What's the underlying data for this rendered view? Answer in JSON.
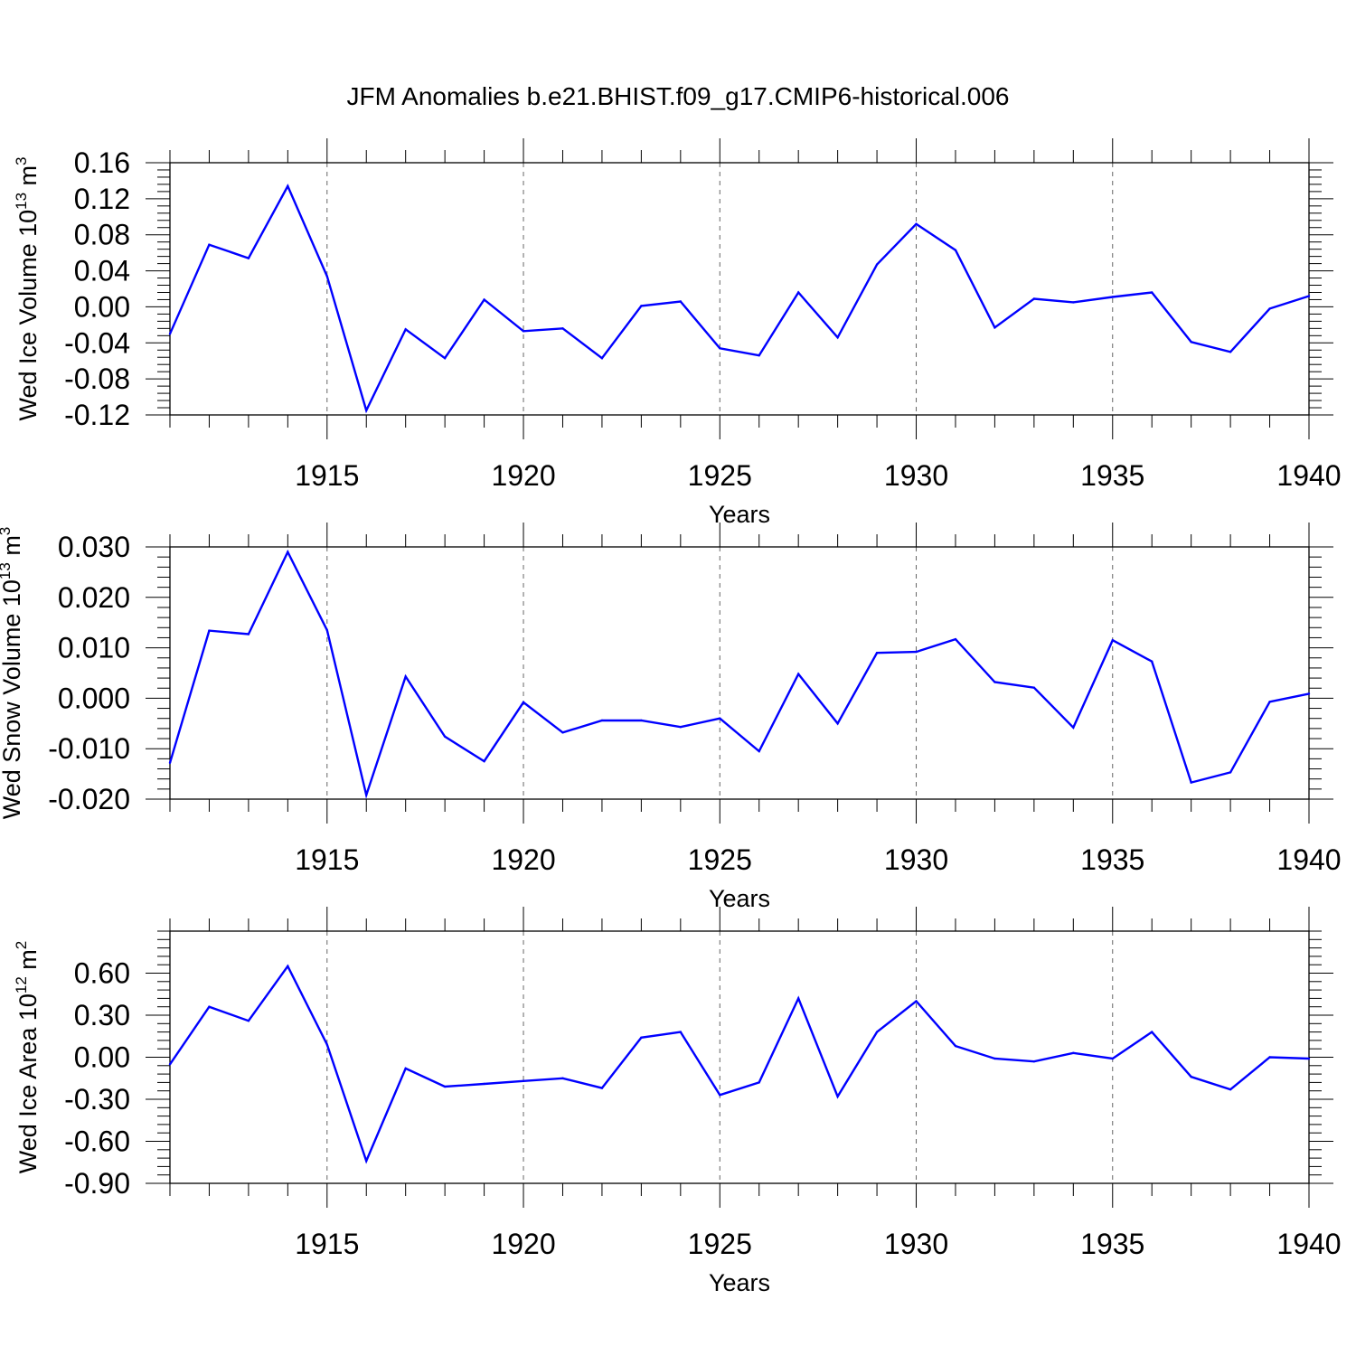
{
  "chart_data": {
    "title": "JFM Anomalies b.e21.BHIST.f09_g17.CMIP6-historical.006",
    "type": "line",
    "line_color": "#0000ff",
    "panels": [
      {
        "type": "line",
        "ylabel": {
          "text": "Wed Ice Volume 10",
          "exponent": "13",
          "unit": " m",
          "unit_exponent": "3"
        },
        "xlabel": "Years",
        "xlim": [
          1911,
          1940
        ],
        "ylim": [
          -0.12,
          0.16
        ],
        "yticks": [
          0.16,
          0.12,
          0.08,
          0.04,
          0.0,
          -0.04,
          -0.08,
          -0.12
        ],
        "ytick_labels": [
          "0.16",
          "0.12",
          "0.08",
          "0.04",
          "0.00",
          "-0.04",
          "-0.08",
          "-0.12"
        ],
        "xticks": [
          1915,
          1920,
          1925,
          1930,
          1935,
          1940
        ],
        "xtick_labels": [
          "1915",
          "1920",
          "1925",
          "1930",
          "1935",
          "1940"
        ],
        "x": [
          1911,
          1912,
          1913,
          1914,
          1915,
          1916,
          1917,
          1918,
          1919,
          1920,
          1921,
          1922,
          1923,
          1924,
          1925,
          1926,
          1927,
          1928,
          1929,
          1930,
          1931,
          1932,
          1933,
          1934,
          1935,
          1936,
          1937,
          1938,
          1939,
          1940
        ],
        "values": [
          -0.03,
          0.069,
          0.054,
          0.134,
          0.034,
          -0.115,
          -0.025,
          -0.057,
          0.008,
          -0.027,
          -0.024,
          -0.057,
          0.001,
          0.006,
          -0.046,
          -0.054,
          0.016,
          -0.034,
          0.047,
          0.092,
          0.063,
          -0.023,
          0.009,
          0.005,
          0.011,
          0.016,
          -0.039,
          -0.05,
          -0.002,
          0.012
        ]
      },
      {
        "type": "line",
        "ylabel": {
          "text": "Wed Snow Volume 10",
          "exponent": "13",
          "unit": " m",
          "unit_exponent": "3"
        },
        "xlabel": "Years",
        "xlim": [
          1911,
          1940
        ],
        "ylim": [
          -0.02,
          0.03
        ],
        "yticks": [
          0.03,
          0.02,
          0.01,
          0.0,
          -0.01,
          -0.02
        ],
        "ytick_labels": [
          "0.030",
          "0.020",
          "0.010",
          "0.000",
          "-0.010",
          "-0.020"
        ],
        "xticks": [
          1915,
          1920,
          1925,
          1930,
          1935,
          1940
        ],
        "xtick_labels": [
          "1915",
          "1920",
          "1925",
          "1930",
          "1935",
          "1940"
        ],
        "x": [
          1911,
          1912,
          1913,
          1914,
          1915,
          1916,
          1917,
          1918,
          1919,
          1920,
          1921,
          1922,
          1923,
          1924,
          1925,
          1926,
          1927,
          1928,
          1929,
          1930,
          1931,
          1932,
          1933,
          1934,
          1935,
          1936,
          1937,
          1938,
          1939,
          1940
        ],
        "values": [
          -0.0128,
          0.0134,
          0.0127,
          0.029,
          0.0135,
          -0.0192,
          0.0043,
          -0.0076,
          -0.0125,
          -0.0008,
          -0.0068,
          -0.0044,
          -0.0044,
          -0.0057,
          -0.004,
          -0.0105,
          0.0048,
          -0.005,
          0.009,
          0.0092,
          0.0117,
          0.0032,
          0.0021,
          -0.0058,
          0.0115,
          0.0073,
          -0.0167,
          -0.0147,
          -0.0007,
          0.0009
        ]
      },
      {
        "type": "line",
        "ylabel": {
          "text": "Wed Ice Area 10",
          "exponent": "12",
          "unit": " m",
          "unit_exponent": "2"
        },
        "xlabel": "Years",
        "xlim": [
          1911,
          1940
        ],
        "ylim": [
          -0.9,
          0.9
        ],
        "yticks": [
          0.6,
          0.3,
          0.0,
          -0.3,
          -0.6,
          -0.9
        ],
        "ytick_labels": [
          "0.60",
          "0.30",
          "0.00",
          "-0.30",
          "-0.60",
          "-0.90"
        ],
        "xticks": [
          1915,
          1920,
          1925,
          1930,
          1935,
          1940
        ],
        "xtick_labels": [
          "1915",
          "1920",
          "1925",
          "1930",
          "1935",
          "1940"
        ],
        "x": [
          1911,
          1912,
          1913,
          1914,
          1915,
          1916,
          1917,
          1918,
          1919,
          1920,
          1921,
          1922,
          1923,
          1924,
          1925,
          1926,
          1927,
          1928,
          1929,
          1930,
          1931,
          1932,
          1933,
          1934,
          1935,
          1936,
          1937,
          1938,
          1939,
          1940
        ],
        "values": [
          -0.05,
          0.36,
          0.26,
          0.65,
          0.09,
          -0.74,
          -0.08,
          -0.21,
          -0.19,
          -0.17,
          -0.15,
          -0.22,
          0.14,
          0.18,
          -0.27,
          -0.18,
          0.42,
          -0.28,
          0.18,
          0.4,
          0.08,
          -0.01,
          -0.03,
          0.03,
          -0.01,
          0.18,
          -0.14,
          -0.23,
          0.0,
          -0.01
        ]
      }
    ]
  }
}
